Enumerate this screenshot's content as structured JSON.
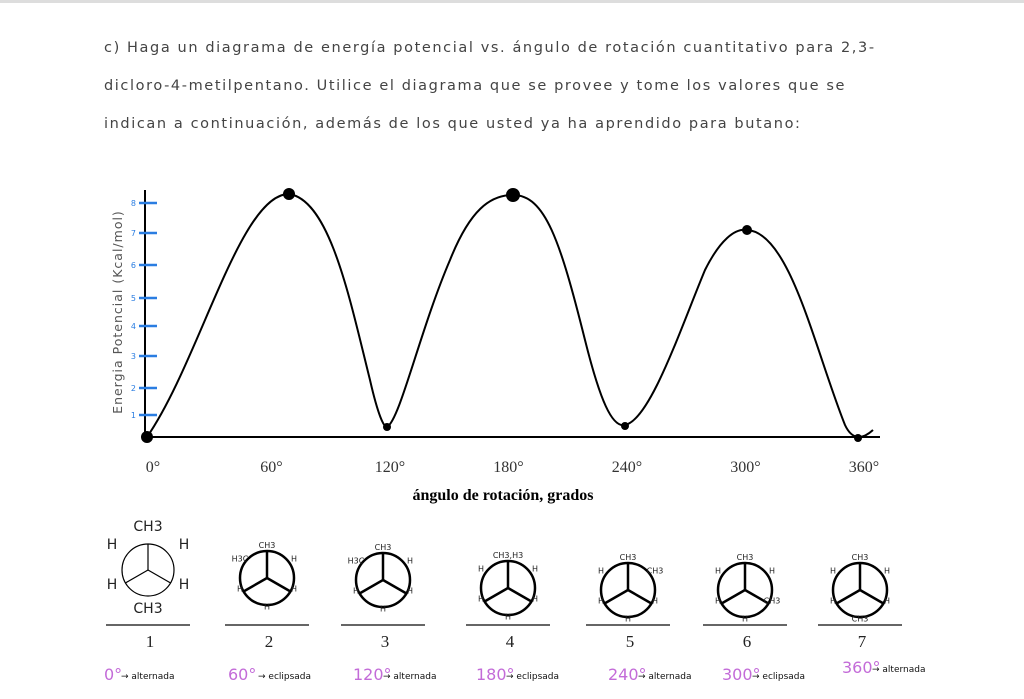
{
  "question": {
    "lines": [
      "c)   Haga un diagrama de energía potencial vs. ángulo de rotación cuantitativo para 2,3-",
      "dicloro-4-metilpentano. Utilice el diagrama que se provee y tome los valores que se",
      "indican a continuación, además de los que usted ya ha aprendido para butano:"
    ]
  },
  "plot": {
    "y_label": "Energia Potencial (Kcal/mol)",
    "y_ticks": [
      "1",
      "2",
      "3",
      "4",
      "5",
      "6",
      "7",
      "8"
    ],
    "x_ticks": [
      "0°",
      "60°",
      "120°",
      "180°",
      "240°",
      "300°",
      "360°"
    ],
    "x_label": "ángulo de rotación, grados"
  },
  "projections": [
    {
      "number": "1",
      "labels": [
        "CH3",
        "H",
        "H",
        "H",
        "H",
        "CH3"
      ]
    },
    {
      "number": "2",
      "labels": [
        "CH3",
        "H3C",
        "H",
        "H",
        "H",
        "H"
      ]
    },
    {
      "number": "3",
      "labels": [
        "CH3",
        "H3C",
        "H",
        "H",
        "H",
        "H"
      ]
    },
    {
      "number": "4",
      "labels": [
        "CH3,H3",
        "H",
        "H",
        "H",
        "H",
        "H"
      ]
    },
    {
      "number": "5",
      "labels": [
        "CH3",
        "H",
        "CH3",
        "H",
        "H",
        "H"
      ]
    },
    {
      "number": "6",
      "labels": [
        "CH3",
        "H",
        "H",
        "H",
        "CH3",
        "H"
      ]
    },
    {
      "number": "7",
      "labels": [
        "CH3",
        "H",
        "H",
        "H",
        "H",
        "CH3"
      ]
    }
  ],
  "annotations": [
    {
      "angle": "0°",
      "text": "→ alternada"
    },
    {
      "angle": "60°",
      "text": "→ eclipsada"
    },
    {
      "angle": "120°",
      "text": "→ alternada"
    },
    {
      "angle": "180°",
      "text": "→ eclipsada"
    },
    {
      "angle": "240°",
      "text": "→ alternada"
    },
    {
      "angle": "300°",
      "text": "→ eclipsada"
    },
    {
      "angle": "360°",
      "text": "→ alternada"
    }
  ]
}
